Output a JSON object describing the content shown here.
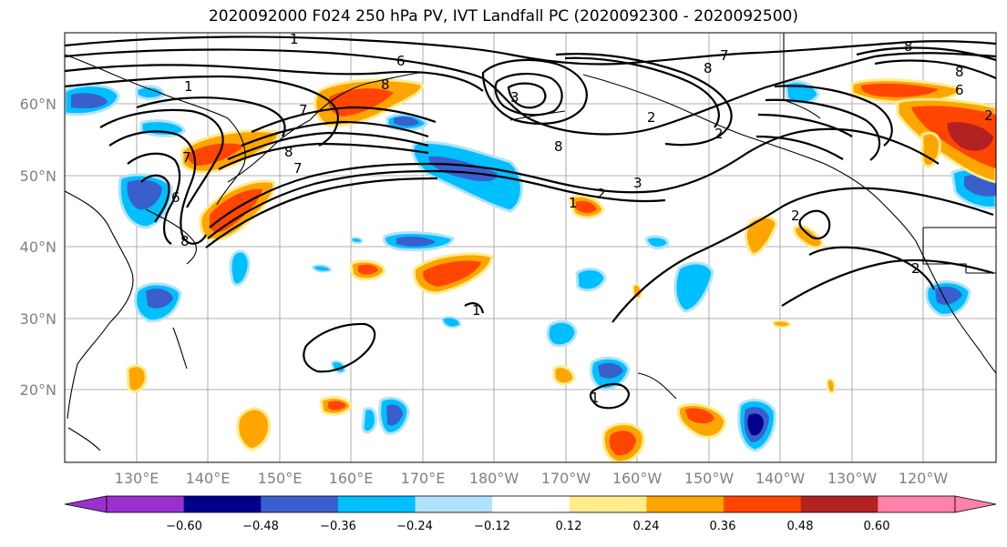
{
  "title": "2020092000 F024 250 hPa PV, IVT Landfall PC (2020092300 - 2020092500)",
  "lat_labels": [
    "60°N",
    "50°N",
    "40°N",
    "30°N",
    "20°N"
  ],
  "lon_labels": [
    "130°E",
    "140°E",
    "150°E",
    "160°E",
    "170°E",
    "180°W",
    "170°W",
    "160°W",
    "150°W",
    "140°W",
    "130°W",
    "120°W"
  ],
  "colorbar": {
    "ticks": [
      "−0.60",
      "−0.48",
      "−0.36",
      "−0.24",
      "−0.12",
      "0.12",
      "0.24",
      "0.36",
      "0.48",
      "0.60"
    ],
    "colors": [
      "#9b30d0",
      "#00008b",
      "#3a5fcd",
      "#00bfff",
      "#b0e2ff",
      "#ffffff",
      "#ffec8b",
      "#ffa500",
      "#ff4500",
      "#b22222",
      "#ff82ab"
    ]
  },
  "contour_labels": [
    "1",
    "6",
    "7",
    "8",
    "3",
    "7",
    "8",
    "8",
    "7",
    "8",
    "6",
    "2",
    "3",
    "1",
    "2",
    "7",
    "8",
    "2",
    "8",
    "6",
    "1",
    "1",
    "2",
    "1",
    "2",
    "2",
    "8"
  ],
  "palette": {
    "purple": "#9b30d0",
    "navy": "#00008b",
    "blue": "#3a5fcd",
    "cyan": "#00bfff",
    "lightblue": "#b0e2ff",
    "yellow": "#ffec8b",
    "orange": "#ffa500",
    "redorange": "#ff4500",
    "darkred": "#b22222",
    "pink": "#ff82ab"
  }
}
